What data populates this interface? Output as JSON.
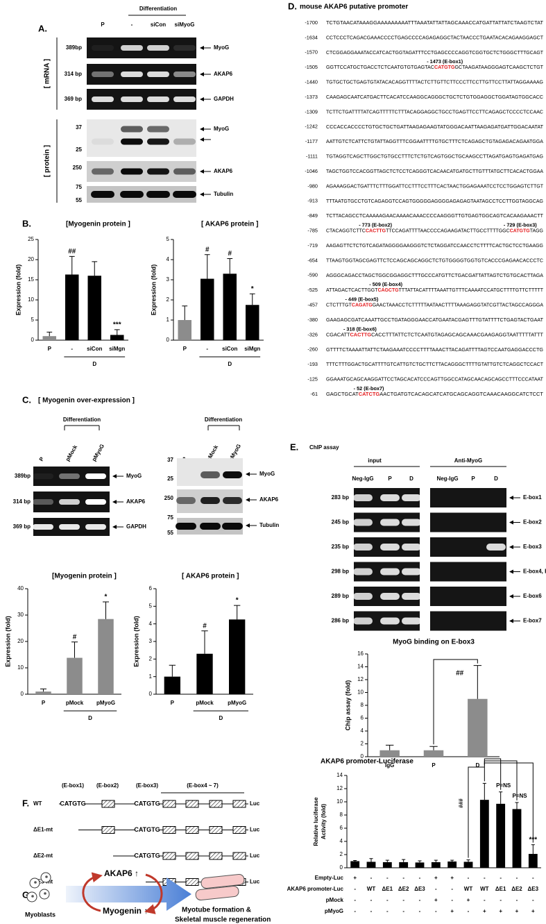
{
  "chart_data": [
    {
      "type": "bar",
      "title": "[Myogenin protein ]",
      "ylabel": "Expression (fold)",
      "categories": [
        "P",
        "-",
        "siCon",
        "siMgn"
      ],
      "values": [
        1,
        16.3,
        16,
        1.3
      ],
      "errors": [
        1,
        4.5,
        3.5,
        1.3
      ],
      "colors": [
        "#8c8c8c",
        "#000000",
        "#000000",
        "#000000"
      ],
      "significance": [
        null,
        "##",
        null,
        "***"
      ],
      "group_label": "D",
      "ylim": [
        0,
        25
      ],
      "yticks": [
        0,
        5,
        10,
        15,
        20,
        25
      ]
    },
    {
      "type": "bar",
      "title": "[ AKAP6 protein ]",
      "ylabel": "Expression (fold)",
      "categories": [
        "P",
        "-",
        "siCon",
        "siMgn"
      ],
      "values": [
        1,
        3.05,
        3.3,
        1.75
      ],
      "errors": [
        0.7,
        1.2,
        0.75,
        0.55
      ],
      "colors": [
        "#8c8c8c",
        "#000000",
        "#000000",
        "#000000"
      ],
      "significance": [
        null,
        "#",
        "#",
        "*"
      ],
      "group_label": "D",
      "ylim": [
        0,
        5
      ],
      "yticks": [
        0,
        1,
        2,
        3,
        4,
        5
      ]
    },
    {
      "type": "bar",
      "title": "[Myogenin protein ]",
      "ylabel": "Expression (fold)",
      "categories": [
        "P",
        "pMock",
        "pMyoG"
      ],
      "values": [
        1,
        13.8,
        28.5
      ],
      "errors": [
        1,
        6,
        6.5
      ],
      "colors": [
        "#8c8c8c",
        "#8c8c8c",
        "#8c8c8c"
      ],
      "significance": [
        null,
        "#",
        "*"
      ],
      "group_label": "D",
      "ylim": [
        0,
        40
      ],
      "yticks": [
        0,
        10,
        20,
        30,
        40
      ]
    },
    {
      "type": "bar",
      "title": "[ AKAP6 protein ]",
      "ylabel": "Expression (fold)",
      "categories": [
        "P",
        "pMock",
        "pMyoG"
      ],
      "values": [
        1,
        2.3,
        4.25
      ],
      "errors": [
        0.65,
        1.3,
        0.8
      ],
      "colors": [
        "#000000",
        "#000000",
        "#000000"
      ],
      "significance": [
        null,
        "#",
        "*"
      ],
      "group_label": "D",
      "ylim": [
        0,
        6
      ],
      "yticks": [
        0,
        1,
        2,
        3,
        4,
        5,
        6
      ]
    },
    {
      "type": "bar",
      "title": "MyoG binding on E-box3",
      "ylabel": "Chip assay (fold)",
      "categories": [
        "IgG",
        "P",
        "D"
      ],
      "values": [
        1,
        1,
        9
      ],
      "errors": [
        0.8,
        0.6,
        5.2
      ],
      "colors": [
        "#8c8c8c",
        "#8c8c8c",
        "#8c8c8c"
      ],
      "bracket_label": "##",
      "ylim": [
        0,
        16
      ],
      "yticks": [
        0,
        2,
        4,
        6,
        8,
        10,
        12,
        14,
        16
      ]
    },
    {
      "type": "bar",
      "title": "AKAP6 promoter-Luciferase",
      "ylabel": [
        "Relative luciferase",
        "Activity (fold)"
      ],
      "values": [
        1,
        0.9,
        0.85,
        0.85,
        0.8,
        0.85,
        0.95,
        0.9,
        10.3,
        9.7,
        8.9,
        2.1
      ],
      "errors": [
        0.1,
        0.5,
        0.3,
        0.4,
        0.25,
        0.3,
        0.2,
        0.3,
        2.5,
        1.8,
        1,
        1.4
      ],
      "colors": [
        "#000000",
        "#000000",
        "#000000",
        "#000000",
        "#000000",
        "#000000",
        "#000000",
        "#000000",
        "#000000",
        "#000000",
        "#000000",
        "#000000"
      ],
      "significance": [
        null,
        null,
        null,
        null,
        null,
        null,
        null,
        null,
        null,
        null,
        null,
        "***"
      ],
      "brackets": [
        "###",
        "P=NS",
        "P=NS"
      ],
      "conditions": [
        {
          "name": "Empty-Luc",
          "values": [
            "+",
            "-",
            "-",
            "-",
            "-",
            "+",
            "+",
            "-",
            "-",
            "-",
            "-",
            "-"
          ]
        },
        {
          "name": "AKAP6 promoter-Luc",
          "values": [
            "-",
            "WT",
            "ΔE1",
            "ΔE2",
            "ΔE3",
            "-",
            "-",
            "WT",
            "WT",
            "ΔE1",
            "ΔE2",
            "ΔE3"
          ]
        },
        {
          "name": "pMock",
          "values": [
            "-",
            "-",
            "-",
            "-",
            "-",
            "+",
            "-",
            "+",
            "-",
            "-",
            "-",
            "-"
          ]
        },
        {
          "name": "pMyoG",
          "values": [
            "-",
            "-",
            "-",
            "-",
            "-",
            "-",
            "+",
            "-",
            "+",
            "+",
            "+",
            "+"
          ]
        }
      ],
      "ylim": [
        0,
        14
      ],
      "yticks": [
        0,
        2,
        4,
        6,
        8,
        10,
        12,
        14
      ]
    }
  ],
  "panel_a": {
    "letter": "A.",
    "header": "Differentiation",
    "lanes": [
      "P",
      "-",
      "siCon",
      "siMyoG"
    ],
    "mrna_label": "[ mRNA ]",
    "protein_label": "[ protein ]",
    "mrna_rows": [
      {
        "size": "389bp",
        "name": "MyoG"
      },
      {
        "size": "314 bp",
        "name": "AKAP6"
      },
      {
        "size": "369 bp",
        "name": "GAPDH"
      }
    ],
    "markers": [
      "37",
      "25",
      "250",
      "75",
      "55"
    ],
    "protein_rows": [
      "MyoG",
      "AKAP6",
      "Tubulin"
    ]
  },
  "panel_b": {
    "letter": "B."
  },
  "panel_c": {
    "letter": "C.",
    "title": "[ Myogenin over-expression ]",
    "header": "Differentiation",
    "lanes": [
      "P",
      "pMock",
      "pMyoG"
    ],
    "mrna_rows": [
      {
        "size": "389bp",
        "name": "MyoG"
      },
      {
        "size": "314 bp",
        "name": "AKAP6"
      },
      {
        "size": "369 bp",
        "name": "GAPDH"
      }
    ],
    "markers": [
      "37",
      "25",
      "250",
      "75",
      "55"
    ],
    "protein_rows": [
      "MyoG",
      "AKAP6",
      "Tubulin"
    ]
  },
  "panel_d": {
    "letter": "D.",
    "title": "mouse AKAP6 putative promoter",
    "lines": [
      {
        "pos": "-1700",
        "segments": [
          {
            "text": "TCTGTAACATAAAGGAAAAAAAAATTTAAATATTATTAGCAAACCATGATTATTATCTAAGTCTAT"
          }
        ]
      },
      {
        "pos": "-1634",
        "segments": [
          {
            "text": "CCTCCCTCAGACGAAACCCCTGAGCCCCAGAGAGGCTACTAACCCTGAATACACAGAAGGAGCT"
          }
        ]
      },
      {
        "pos": "-1570",
        "segments": [
          {
            "text": "CTCGGAGGAAATACCATCACTGGTAGATTTCCTGAGCCCCAGGTCGGTGCTCTGGGCTTTGCAGT"
          }
        ]
      },
      {
        "pos": "-1505",
        "notes": [
          "- 1473 (E-box1)"
        ],
        "segments": [
          {
            "text": "GGTTCCATGCTGACCTCTCAATGTGTGAGTAC"
          },
          {
            "text": "CATGTG",
            "color": "#e31a1c"
          },
          {
            "text": "GCTAAGATAAGGGAGTCAAGCTCTGT"
          }
        ]
      },
      {
        "pos": "-1440",
        "segments": [
          {
            "text": "TGTGCTGCTGAGTGTATACACAGGTTTTACTCTTGTTCTTCCCTTCCTTGTTCCTTATTAGGAAAAG"
          }
        ]
      },
      {
        "pos": "-1373",
        "segments": [
          {
            "text": "CAAGAGCAATCATGACTTCACATCCAAGGCAGGGCTGCTCTGTGGAGGCTGGATAGTGGCACC"
          }
        ]
      },
      {
        "pos": "-1309",
        "segments": [
          {
            "text": "TCTTCTGATTTTATCAGTTTTTCTTTACAGGAGGCTGCCTGAGTTCCTTCAGAGCTCCCCTCCAAC"
          }
        ]
      },
      {
        "pos": "-1242",
        "segments": [
          {
            "text": "CCCACCACCCCTGTGCTGCTGATTAAGAGAAGTATGGGACAATTAAGAGATGATTGGACAATAT"
          }
        ]
      },
      {
        "pos": "-1177",
        "segments": [
          {
            "text": "AATTGTCTCATTCTGTATTAGGTTTCGGAATTTTGTGCTTTCTCAGAGCTGTAGAGACAGAATGGA"
          }
        ]
      },
      {
        "pos": "-1111",
        "segments": [
          {
            "text": "TGTAGGTCAGCTTGGCTGTGCCTTTCTCTGTCAGTGGCTGCAAGCCTTAGATGAGTGAGATGAG"
          }
        ]
      },
      {
        "pos": "-1046",
        "segments": [
          {
            "text": "TAGCTGGTCCACGGTTAGCTCTCCTCAGGGTCACAACATGATGCTTGTTTATGCTTCACACTGGAA"
          }
        ]
      },
      {
        "pos": "-980",
        "segments": [
          {
            "text": "AGAAAGGACTGATTTCTTTGGATTCCTTTCCTTTCACTAACTGGAGAAATCCTCCTGGAGTCTTGT"
          }
        ]
      },
      {
        "pos": "-913",
        "segments": [
          {
            "text": "TTTAATGTGCCTGTCAGAGGTCCAGTGGGGGAGGGGAGAGAGTAATAGCCTCCTTGGTAGGCAG"
          }
        ]
      },
      {
        "pos": "-849",
        "segments": [
          {
            "text": "TCTTACAGCCTCAAAAAGAACAAAACAAACCCCAAGGGTTGTGAGTGGCAGTCACAAGAAACTT"
          }
        ]
      },
      {
        "pos": "-785",
        "notes": [
          "- 773 (E-box2)",
          "- 729 (E-box3)"
        ],
        "segments": [
          {
            "text": "CTACAGGTCTTC"
          },
          {
            "text": "CACTTG",
            "color": "#e31a1c"
          },
          {
            "text": "TTCCAGATTTTAACCCCAGAAGATACTTGCCTTTTGGC"
          },
          {
            "text": "CATGTG",
            "color": "#e31a1c"
          },
          {
            "text": "TAGG"
          }
        ]
      },
      {
        "pos": "-719",
        "segments": [
          {
            "text": "AAGAGTTCTCTGTCAGATAGGGGAAGGGTCTCTAGGATCCAACCTCTTTTCACTGCTCCTGAAGG"
          }
        ]
      },
      {
        "pos": "-654",
        "segments": [
          {
            "text": "TTAAGTGGTAGCGAGTTCTCCAGCAGCAGGCTCTGTGGGGTGGTGTCACCCGAGAACACCCTC"
          }
        ]
      },
      {
        "pos": "-590",
        "segments": [
          {
            "text": "AGGGCAGACCTAGCTGGCGGAGGCTTTGCCCATGTTCTGACGATTATTAGTCTGTGCACTTAGA"
          }
        ]
      },
      {
        "pos": "-525",
        "notes": [
          "- 509 (E-box4)"
        ],
        "segments": [
          {
            "text": "ATTAGACTCACTTGGT"
          },
          {
            "text": "CAGCTG",
            "color": "#e31a1c"
          },
          {
            "text": "TTTATTACATTTTAAATTGTTTCAAAATCCATGCTTTTGTTCTTTTT"
          }
        ]
      },
      {
        "pos": "-457",
        "notes": [
          "- 449 (E-box5)"
        ],
        "segments": [
          {
            "text": "CTCTTTGT"
          },
          {
            "text": "CAGATG",
            "color": "#e31a1c"
          },
          {
            "text": "GAACTAAACCTCTTTTTAATAACTTTTAAAGAGGTATCGTTACTAGCCAGGGA"
          }
        ]
      },
      {
        "pos": "-380",
        "segments": [
          {
            "text": "GAAGAGCGATCAAATTGCCTGATAGGGAACCATGAATACGAGTTTGTATTTTCTGAGTACTGAAT"
          }
        ]
      },
      {
        "pos": "-326",
        "notes": [
          "- 318 (E-box6)"
        ],
        "segments": [
          {
            "text": "CGACATT"
          },
          {
            "text": "CACTTG",
            "color": "#e31a1c"
          },
          {
            "text": "CACCTTTATTCTCTCAATGTAGAGCAGCAAACGAAGAGGTAATTTTTATTT"
          }
        ]
      },
      {
        "pos": "-260",
        "segments": [
          {
            "text": "GTTTTCTAAAATTATTCTAAGAAATCCCCTTTTAAACTTACAGATTTTAGTCCAATGAGGACCCTG"
          }
        ]
      },
      {
        "pos": "-193",
        "segments": [
          {
            "text": "TTTCTTTGGACTGCATTTTGTCATTGTCTGCTTCTTACAGGGCTTTTGTATTGTCTCAGGCTCCACT"
          }
        ]
      },
      {
        "pos": "-125",
        "segments": [
          {
            "text": "GGAAATGCAGCAAGGATTCCTAGCACATCCCAGTTGGCCATAGCAACAGCAGCCTTTCCCATAAT"
          }
        ]
      },
      {
        "pos": "-61",
        "notes": [
          "- 52 (E-box7)"
        ],
        "segments": [
          {
            "text": "GAGCTGCAT"
          },
          {
            "text": "CATCTG",
            "color": "#e31a1c"
          },
          {
            "text": "AACTGATGTCACAGCATCATGCAGCAGGTCAAACAAGGCATCTCCT"
          }
        ]
      }
    ]
  },
  "panel_e": {
    "letter": "E.",
    "title": "ChIP assay",
    "groups": [
      "input",
      "Anti-MyoG"
    ],
    "lanes": [
      "Neg-IgG",
      "P",
      "D"
    ],
    "rows": [
      {
        "size": "283 bp",
        "name": "E-box1"
      },
      {
        "size": "245 bp",
        "name": "E-box2"
      },
      {
        "size": "235 bp",
        "name": "E-box3"
      },
      {
        "size": "298 bp",
        "name": "E-box4, E-box5"
      },
      {
        "size": "289 bp",
        "name": "E-box6"
      },
      {
        "size": "286 bp",
        "name": "E-box7"
      }
    ]
  },
  "panel_f": {
    "letter": "F.",
    "headers": [
      "(E-box1)",
      "(E-box2)",
      "(E-box3)",
      "(E-box4 ~ 7)"
    ],
    "constructs": [
      {
        "label": "WT",
        "ebox1": "CATGTG",
        "ebox3": "CATGTG"
      },
      {
        "label": "ΔE1-mt",
        "ebox3": "CATGTG"
      },
      {
        "label": "ΔE2-mt",
        "ebox3": "CATGTG"
      },
      {
        "label": "ΔE3-mt"
      }
    ],
    "reporter": "Luc"
  },
  "panel_g": {
    "letter": "G.",
    "cells": "Myoblasts",
    "upper": "AKAP6 ↑",
    "lower": "Myogenin ↑",
    "outcome": [
      "Myotube formation  &",
      "Skeletal muscle regeneration"
    ]
  }
}
